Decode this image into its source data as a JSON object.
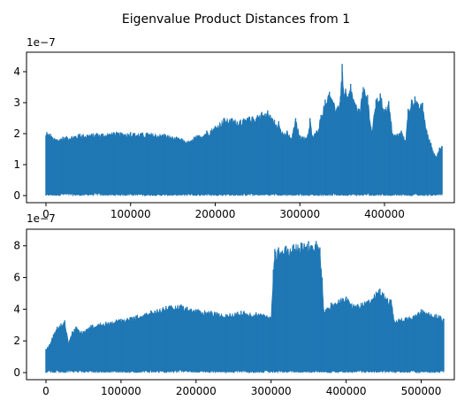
{
  "figure": {
    "title": "Eigenvalue Product Distances from 1"
  },
  "colors": {
    "series": "#1f77b4",
    "axis": "#000000",
    "background": "#ffffff"
  },
  "chart_data": [
    {
      "type": "area",
      "title": "",
      "xlabel": "",
      "ylabel": "",
      "y_scale_label": "1e−7",
      "xlim": [
        0,
        470000
      ],
      "ylim": [
        0,
        4.4
      ],
      "x_ticks": [
        0,
        100000,
        200000,
        300000,
        400000
      ],
      "x_tick_labels": [
        "0",
        "100000",
        "200000",
        "300000",
        "400000"
      ],
      "y_ticks": [
        0,
        1,
        2,
        3,
        4
      ],
      "y_tick_labels": [
        "0",
        "1",
        "2",
        "3",
        "4"
      ],
      "grid": false,
      "series": [
        {
          "values_unit": "1e-7",
          "x": [
            0,
            1000,
            5000,
            10000,
            20000,
            40000,
            60000,
            80000,
            100000,
            120000,
            140000,
            160000,
            170000,
            175000,
            180000,
            190000,
            200000,
            210000,
            220000,
            230000,
            240000,
            250000,
            255000,
            260000,
            262000,
            265000,
            270000,
            275000,
            280000,
            285000,
            290000,
            295000,
            300000,
            305000,
            310000,
            312000,
            315000,
            320000,
            325000,
            330000,
            335000,
            340000,
            345000,
            348000,
            350000,
            352000,
            354000,
            356000,
            358000,
            360000,
            365000,
            370000,
            375000,
            380000,
            385000,
            390000,
            395000,
            400000,
            405000,
            410000,
            415000,
            420000,
            425000,
            428000,
            432000,
            436000,
            440000,
            445000,
            450000,
            455000,
            460000,
            465000,
            468000
          ],
          "y": [
            1.95,
            2.05,
            2.0,
            1.85,
            1.9,
            2.0,
            2.02,
            2.05,
            2.05,
            2.03,
            2.0,
            1.85,
            1.75,
            1.9,
            1.95,
            2.1,
            2.25,
            2.5,
            2.5,
            2.45,
            2.55,
            2.6,
            2.7,
            2.65,
            2.75,
            2.6,
            2.45,
            2.4,
            2.0,
            2.1,
            1.85,
            2.5,
            1.95,
            1.9,
            2.0,
            2.5,
            1.95,
            2.1,
            2.6,
            3.1,
            3.35,
            3.0,
            2.9,
            3.2,
            4.25,
            3.3,
            3.45,
            3.2,
            3.3,
            3.6,
            3.0,
            2.8,
            3.5,
            3.25,
            2.1,
            3.1,
            3.3,
            2.8,
            3.05,
            2.0,
            2.0,
            2.1,
            1.8,
            2.8,
            3.1,
            3.2,
            2.95,
            3.0,
            2.1,
            1.7,
            1.3,
            1.55,
            1.6
          ],
          "floor": [
            0,
            0.05,
            0.05,
            0.05,
            0.1,
            0.05,
            0.1,
            0.05,
            0.1,
            0.05,
            0.05,
            0.05,
            0.1,
            0.05,
            0.05,
            0.1,
            0.05,
            0.1,
            0.05,
            0.05,
            0.1,
            0.05,
            0.05,
            0.1,
            0.05,
            0.05,
            0.1,
            0.05,
            0.05,
            0.1,
            0.05,
            0.05,
            0.1,
            0.05,
            0.05,
            0.1,
            0.05,
            0.05,
            0.1,
            0.05,
            0.05,
            0.1,
            0.05,
            0.05,
            0.1,
            0.05,
            0.05,
            0.1,
            0.05,
            0.05,
            0.1,
            0.05,
            0.05,
            0.1,
            0.05,
            0.05,
            0.1,
            0.05,
            0.05,
            0.1,
            0.05,
            0.05,
            0.1,
            0.05,
            0.05,
            0.1,
            0.05,
            0.05,
            0.1,
            0.05,
            0.05,
            0.1,
            0.05
          ]
        }
      ]
    },
    {
      "type": "area",
      "title": "",
      "xlabel": "",
      "ylabel": "",
      "y_scale_label": "1e−7",
      "xlim": [
        0,
        530000
      ],
      "ylim": [
        0,
        8.6
      ],
      "x_ticks": [
        0,
        100000,
        200000,
        300000,
        400000,
        500000
      ],
      "x_tick_labels": [
        "0",
        "100000",
        "200000",
        "300000",
        "400000",
        "500000"
      ],
      "y_ticks": [
        0,
        2,
        4,
        6,
        8
      ],
      "y_tick_labels": [
        "0",
        "2",
        "4",
        "6",
        "8"
      ],
      "grid": false,
      "series": [
        {
          "values_unit": "1e-7",
          "x": [
            0,
            2000,
            5000,
            10000,
            15000,
            20000,
            25000,
            30000,
            35000,
            40000,
            50000,
            60000,
            80000,
            100000,
            120000,
            140000,
            160000,
            180000,
            200000,
            220000,
            240000,
            260000,
            280000,
            290000,
            300000,
            303000,
            305000,
            310000,
            320000,
            330000,
            340000,
            350000,
            355000,
            360000,
            365000,
            368000,
            370000,
            380000,
            390000,
            400000,
            410000,
            420000,
            430000,
            440000,
            445000,
            450000,
            455000,
            460000,
            465000,
            470000,
            480000,
            490000,
            500000,
            510000,
            520000,
            525000,
            530000
          ],
          "y": [
            1.5,
            1.6,
            1.8,
            2.4,
            2.9,
            3.1,
            3.3,
            1.9,
            2.6,
            2.9,
            2.6,
            3.0,
            3.2,
            3.4,
            3.6,
            3.9,
            4.2,
            4.3,
            4.0,
            3.9,
            3.7,
            3.9,
            3.8,
            3.7,
            3.5,
            6.5,
            7.8,
            7.9,
            8.0,
            8.1,
            8.2,
            8.3,
            8.0,
            8.3,
            7.9,
            6.0,
            4.0,
            4.4,
            4.6,
            4.8,
            4.3,
            4.4,
            4.6,
            5.1,
            5.3,
            5.0,
            4.7,
            4.6,
            3.2,
            3.4,
            3.5,
            3.6,
            4.0,
            3.8,
            3.7,
            3.6,
            3.4
          ],
          "floor": [
            0,
            0.1,
            0.2,
            0.1,
            0.2,
            0.1,
            0.1,
            0.2,
            0.1,
            0.2,
            0.1,
            0.2,
            0.1,
            0.2,
            0.1,
            0.2,
            0.1,
            0.2,
            0.1,
            0.2,
            0.1,
            0.2,
            0.1,
            0.2,
            0.1,
            0.2,
            0.1,
            0.2,
            0.1,
            0.2,
            0.1,
            0.2,
            0.1,
            0.2,
            0.1,
            0.2,
            0.1,
            0.2,
            0.1,
            0.2,
            0.1,
            0.2,
            0.1,
            0.2,
            0.1,
            0.2,
            0.1,
            0.2,
            0.1,
            0.2,
            0.1,
            0.2,
            0.1,
            0.2,
            0.1,
            0.2,
            0.1
          ]
        }
      ]
    }
  ]
}
